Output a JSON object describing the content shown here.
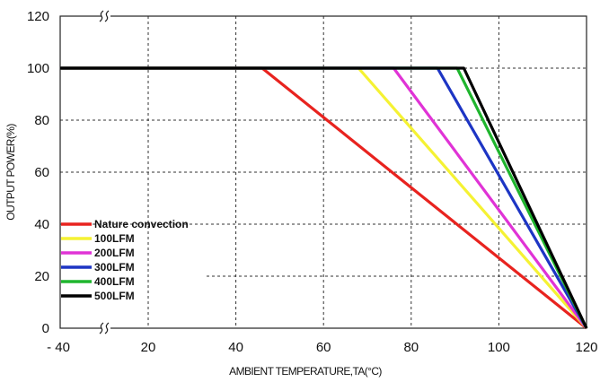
{
  "chart_data": {
    "type": "line",
    "xlabel": "AMBIENT TEMPERATURE,TA(°C)",
    "ylabel": "OUTPUT POWER(%)",
    "x_ticks": [
      "- 40",
      "20",
      "40",
      "60",
      "80",
      "100",
      "120"
    ],
    "y_ticks": [
      "0",
      "20",
      "40",
      "60",
      "80",
      "100",
      "120"
    ],
    "x_tick_values": [
      -40,
      20,
      40,
      60,
      80,
      100,
      120
    ],
    "y_tick_values": [
      0,
      20,
      40,
      60,
      80,
      100,
      120
    ],
    "xlim": [
      -40,
      120
    ],
    "ylim": [
      0,
      120
    ],
    "axis_break": "between -40 and 20",
    "grid": "dashed",
    "legend_position": "left",
    "series": [
      {
        "name": "Nature convection",
        "color": "#e8231f",
        "x": [
          -40,
          46,
          120
        ],
        "y": [
          100,
          100,
          0
        ]
      },
      {
        "name": "100LFM",
        "color": "#f5f233",
        "x": [
          -40,
          68,
          120
        ],
        "y": [
          100,
          100,
          0
        ]
      },
      {
        "name": "200LFM",
        "color": "#e033d6",
        "x": [
          -40,
          76,
          120
        ],
        "y": [
          100,
          100,
          0
        ]
      },
      {
        "name": "300LFM",
        "color": "#1d35c4",
        "x": [
          -40,
          86,
          120
        ],
        "y": [
          100,
          100,
          0
        ]
      },
      {
        "name": "400LFM",
        "color": "#1fb52e",
        "x": [
          -40,
          90.5,
          120
        ],
        "y": [
          100,
          100,
          0
        ]
      },
      {
        "name": "500LFM",
        "color": "#000000",
        "x": [
          -40,
          92,
          120
        ],
        "y": [
          100,
          100,
          0
        ]
      }
    ]
  }
}
